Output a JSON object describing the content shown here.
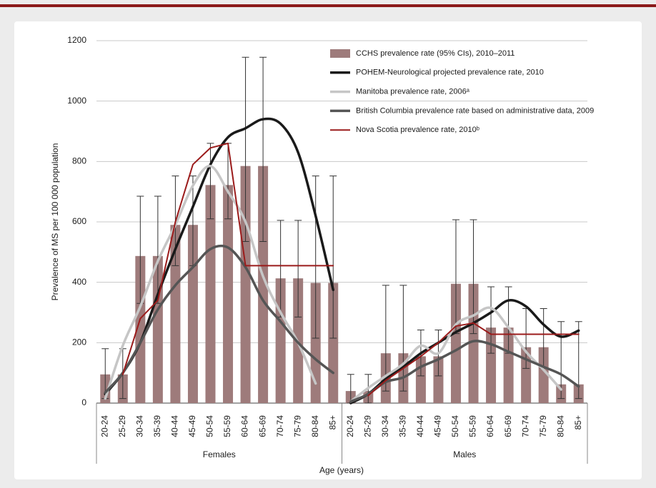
{
  "chart_data": {
    "type": "bar",
    "ylabel": "Prevalence of MS per 100 000 population",
    "xlabel": "Age (years)",
    "ylim": [
      0,
      1200
    ],
    "yticks": [
      0,
      200,
      400,
      600,
      800,
      1000,
      1200
    ],
    "grid": true,
    "legend": "top-right",
    "groups": [
      {
        "label": "Females",
        "categories": [
          "20-24",
          "25-29",
          "30-34",
          "35-39",
          "40-44",
          "45-49",
          "50-54",
          "55-59",
          "60-64",
          "65-69",
          "70-74",
          "75-79",
          "80-84",
          "85+"
        ]
      },
      {
        "label": "Males",
        "categories": [
          "20-24",
          "25-29",
          "30-34",
          "35-39",
          "40-44",
          "45-49",
          "50-54",
          "55-59",
          "60-64",
          "65-69",
          "70-74",
          "75-79",
          "80-84",
          "85+"
        ]
      }
    ],
    "series": [
      {
        "name": "CCHS prevalence rate (95% CIs), 2010–2011",
        "type": "bar",
        "color": "#9e7b7b",
        "values": [
          [
            95,
            95,
            487,
            487,
            590,
            590,
            722,
            722,
            785,
            785,
            413,
            413,
            398,
            398
          ],
          [
            40,
            40,
            165,
            165,
            155,
            155,
            395,
            395,
            250,
            250,
            185,
            185,
            62,
            62
          ]
        ],
        "ci_lower": [
          [
            15,
            15,
            330,
            330,
            455,
            455,
            610,
            610,
            535,
            535,
            285,
            285,
            215,
            215
          ],
          [
            0,
            0,
            40,
            40,
            90,
            90,
            230,
            230,
            165,
            165,
            115,
            115,
            15,
            15
          ]
        ],
        "ci_upper": [
          [
            180,
            180,
            685,
            685,
            752,
            752,
            860,
            860,
            1145,
            1145,
            605,
            605,
            752,
            752
          ],
          [
            95,
            95,
            390,
            390,
            242,
            242,
            607,
            607,
            385,
            385,
            313,
            313,
            270,
            270
          ]
        ]
      },
      {
        "name": "POHEM-Neurological projected prevalence rate, 2010",
        "type": "line",
        "smooth": true,
        "color": "#1a1a1a",
        "values": [
          [
            30,
            100,
            200,
            360,
            510,
            650,
            790,
            880,
            910,
            940,
            925,
            830,
            620,
            375
          ],
          [
            0,
            30,
            80,
            120,
            165,
            200,
            235,
            265,
            300,
            340,
            320,
            260,
            220,
            240
          ]
        ]
      },
      {
        "name": "Manitoba prevalence rate, 2006ᵃ",
        "type": "line",
        "smooth": true,
        "color": "#c6c6c6",
        "values": [
          [
            15,
            190,
            320,
            470,
            590,
            720,
            785,
            700,
            600,
            420,
            300,
            200,
            65,
            null
          ],
          [
            5,
            50,
            90,
            130,
            190,
            165,
            260,
            290,
            315,
            250,
            170,
            110,
            45,
            null
          ]
        ]
      },
      {
        "name": "British Columbia prevalence rate based on administrative data, 2009",
        "type": "line",
        "smooth": true,
        "color": "#555555",
        "values": [
          [
            35,
            100,
            200,
            310,
            390,
            450,
            510,
            515,
            450,
            340,
            270,
            200,
            145,
            100
          ],
          [
            5,
            30,
            70,
            85,
            120,
            145,
            175,
            205,
            195,
            170,
            145,
            120,
            95,
            55
          ]
        ]
      },
      {
        "name": "Nova Scotia prevalence rate, 2010ᵇ",
        "type": "line",
        "smooth": false,
        "color": "#9b1b1b",
        "values": [
          [
            null,
            95,
            280,
            340,
            600,
            790,
            845,
            860,
            455,
            455,
            455,
            455,
            455,
            455
          ],
          [
            null,
            25,
            75,
            115,
            155,
            200,
            255,
            265,
            228,
            228,
            228,
            228,
            228,
            228
          ]
        ]
      }
    ]
  }
}
